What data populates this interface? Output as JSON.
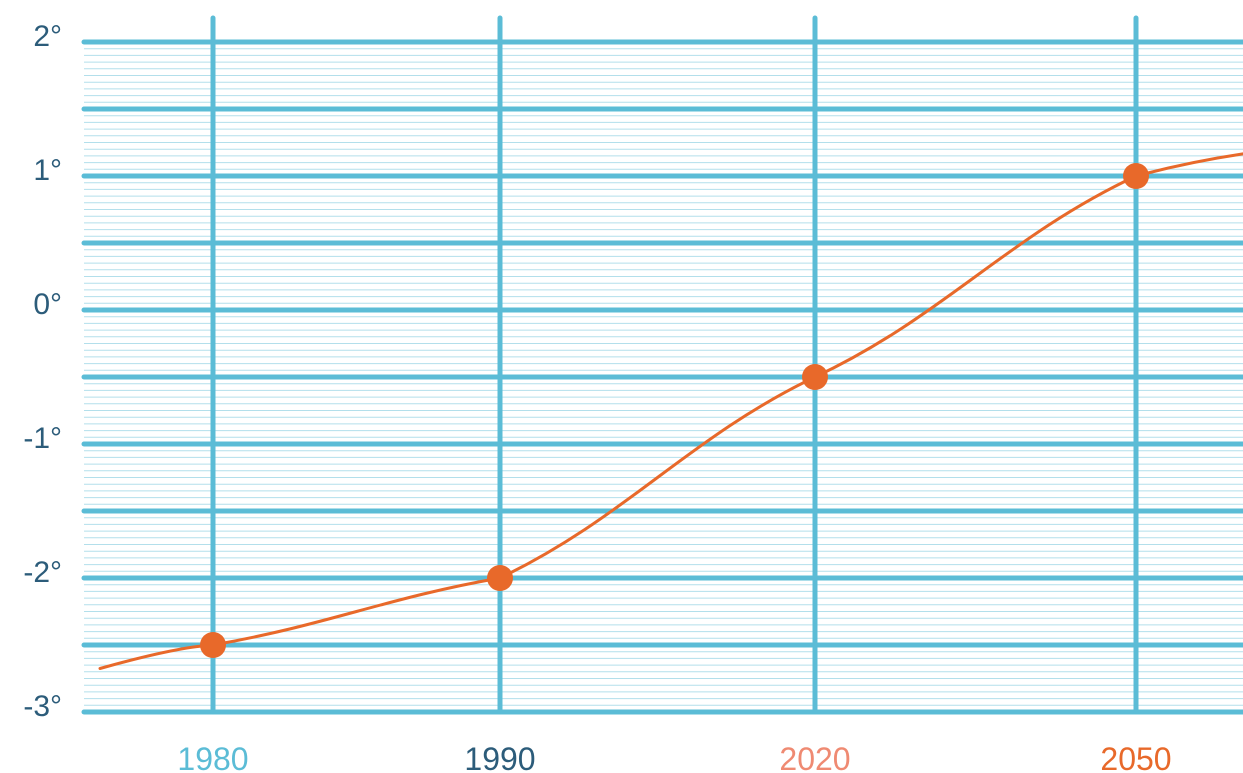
{
  "chart_data": {
    "type": "line",
    "title": "",
    "xlabel": "",
    "ylabel": "",
    "categories": [
      "1980",
      "1990",
      "2020",
      "2050"
    ],
    "category_colors": [
      "#5bbcd6",
      "#2c5c7a",
      "#ef8a72",
      "#e8692a"
    ],
    "series": [
      {
        "color": "#e8692a",
        "values": [
          -2.5,
          -2.0,
          -0.5,
          1.0
        ]
      }
    ],
    "y_ticks": [
      {
        "value": 2,
        "label": "2°"
      },
      {
        "value": 1,
        "label": "1°"
      },
      {
        "value": 0,
        "label": "0°"
      },
      {
        "value": -1,
        "label": "-1°"
      },
      {
        "value": -2,
        "label": "-2°"
      },
      {
        "value": -3,
        "label": "-3°"
      }
    ],
    "ylim": [
      -3,
      2
    ],
    "grid": true,
    "grid_color": "#5bbcd6",
    "fine_grid_color": "#b3dfeb",
    "ytick_color": "#2c5c7a"
  }
}
